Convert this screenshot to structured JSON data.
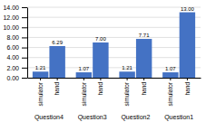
{
  "chart_data": {
    "type": "bar",
    "categories": [
      "Question4",
      "Question3",
      "Question2",
      "Question1"
    ],
    "series": [
      {
        "name": "simulator",
        "color": "#4472C4",
        "values": [
          1.21,
          1.07,
          1.21,
          1.07
        ],
        "value_labels": [
          "1.21",
          "1.07",
          "1.21",
          "1.07"
        ]
      },
      {
        "name": "hand",
        "color": "#4472C4",
        "values": [
          6.29,
          7.0,
          7.71,
          13.0
        ],
        "value_labels": [
          "6.29",
          "7.00",
          "7.71",
          "13.00"
        ]
      }
    ],
    "ylim": [
      0,
      14.0
    ],
    "yticks": [
      {
        "value": 0,
        "label": "0.00"
      },
      {
        "value": 2,
        "label": "2.00"
      },
      {
        "value": 4,
        "label": "4.00"
      },
      {
        "value": 6,
        "label": "6.00"
      },
      {
        "value": 8,
        "label": "8.00"
      },
      {
        "value": 10,
        "label": "10.00"
      },
      {
        "value": 12,
        "label": "12.00"
      },
      {
        "value": 14,
        "label": "14.00"
      }
    ],
    "grid": true,
    "data_labels": true
  }
}
